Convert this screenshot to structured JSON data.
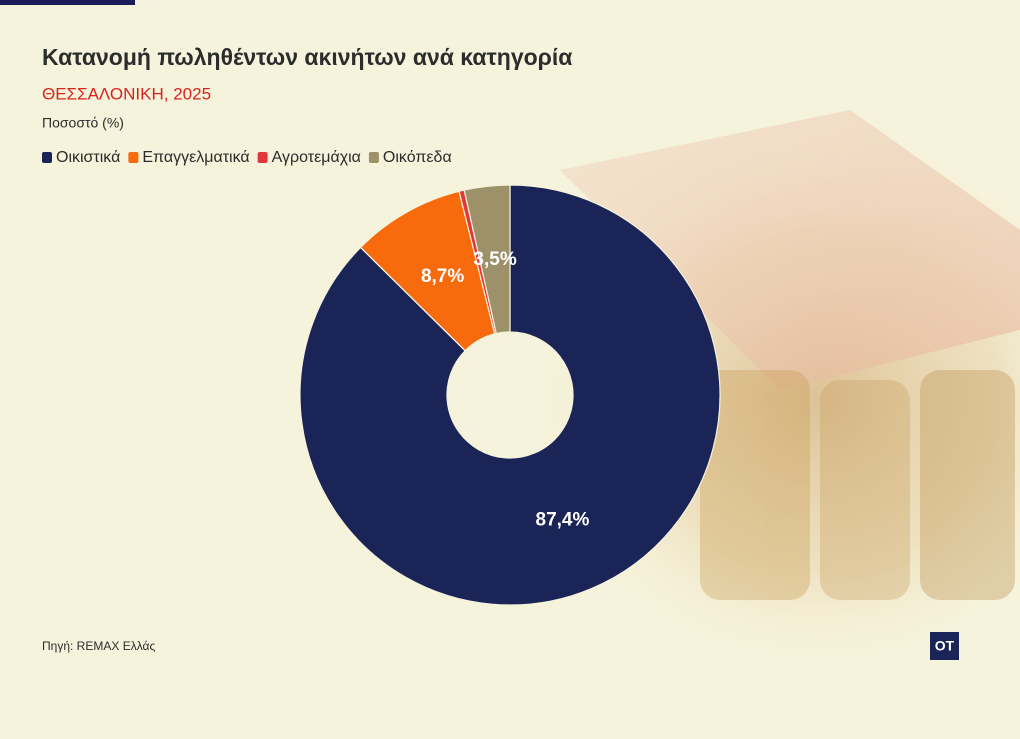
{
  "chart_data": {
    "type": "donut",
    "title": "Κατανομή πωληθέντων ακινήτων ανά κατηγορία",
    "subtitle": "ΘΕΣΣΑΛΟΝΙΚΗ, 2025",
    "unit_label": "Ποσοστό (%)",
    "categories": [
      "Οικιστικά",
      "Επαγγελματικά",
      "Αγροτεμάχια",
      "Οικόπεδα"
    ],
    "values": [
      87.4,
      8.7,
      0.4,
      3.5
    ],
    "value_labels": [
      "87,4%",
      "8,7%",
      null,
      "3,5%"
    ],
    "colors": [
      "#1b2457",
      "#f76b0c",
      "#e0383a",
      "#9d9169"
    ],
    "source": "Πηγή: REMAX Ελλάς",
    "logo": "OT"
  }
}
